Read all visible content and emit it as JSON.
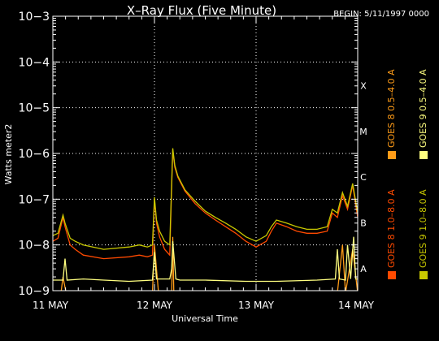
{
  "chart_data": {
    "type": "line",
    "title": "X–Ray Flux (Five Minute)",
    "begin_label": "BEGIN: 5/11/1997 0000",
    "xlabel": "Universal Time",
    "ylabel": "Watts meter2",
    "y_scale": "log",
    "ylim_exponents": [
      -9,
      -3
    ],
    "y_tick_labels": [
      "10−9",
      "10−8",
      "10−7",
      "10−6",
      "10−5",
      "10−4",
      "10−3"
    ],
    "x_range_days": [
      0,
      3
    ],
    "x_ticks": [
      {
        "day": 0,
        "label": "11 MAY"
      },
      {
        "day": 1,
        "label": "12 MAY"
      },
      {
        "day": 2,
        "label": "13 MAY"
      },
      {
        "day": 3,
        "label": "14 MAY"
      }
    ],
    "flare_classes": [
      {
        "label": "X",
        "exponent": -4
      },
      {
        "label": "M",
        "exponent": -5
      },
      {
        "label": "C",
        "exponent": -6
      },
      {
        "label": "B",
        "exponent": -7
      },
      {
        "label": "A",
        "exponent": -8
      }
    ],
    "grid": true,
    "legend_position": "right",
    "series": [
      {
        "name": "GOES 8  1.0–8.0 A",
        "color": "#ff4a00",
        "x": [
          0,
          0.05,
          0.1,
          0.12,
          0.17,
          0.22,
          0.3,
          0.5,
          0.75,
          0.85,
          0.93,
          0.98,
          1.0,
          1.02,
          1.05,
          1.1,
          1.15,
          1.18,
          1.2,
          1.23,
          1.3,
          1.4,
          1.5,
          1.6,
          1.7,
          1.8,
          1.9,
          2.0,
          2.1,
          2.15,
          2.2,
          2.3,
          2.4,
          2.5,
          2.6,
          2.7,
          2.75,
          2.8,
          2.85,
          2.9,
          2.95,
          3.0
        ],
        "y": [
          1.2e-08,
          1.4e-08,
          4e-08,
          2.5e-08,
          1e-08,
          8e-09,
          6e-09,
          5e-09,
          5.5e-09,
          6e-09,
          5.5e-09,
          6e-09,
          1e-07,
          3e-08,
          1.5e-08,
          8e-09,
          6e-09,
          1.2e-06,
          5e-07,
          3e-07,
          1.5e-07,
          8e-08,
          5e-08,
          3.5e-08,
          2.5e-08,
          1.8e-08,
          1.2e-08,
          9e-09,
          1.2e-08,
          2e-08,
          3e-08,
          2.5e-08,
          2e-08,
          1.8e-08,
          1.8e-08,
          2e-08,
          5e-08,
          4e-08,
          1.2e-07,
          6e-08,
          2e-07,
          4e-08
        ]
      },
      {
        "name": "GOES 8  0.5–4.0 A",
        "color": "#ff9c18",
        "x": [
          0,
          0.08,
          0.1,
          0.13,
          0.3,
          0.98,
          1.0,
          1.04,
          1.1,
          1.17,
          1.18,
          1.19,
          1.25,
          1.5,
          1.9,
          2.8,
          2.85,
          2.88,
          2.95,
          3.0
        ],
        "y": [
          1e-10,
          1e-10,
          2e-09,
          1e-10,
          1e-10,
          1e-10,
          1e-08,
          1e-10,
          1e-10,
          1e-10,
          1.5e-08,
          1e-10,
          1e-10,
          1e-10,
          1e-10,
          1e-10,
          1e-08,
          1e-10,
          8e-09,
          1e-10
        ]
      },
      {
        "name": "GOES 9  1.0–8.0 A",
        "color": "#c8c800",
        "x": [
          0,
          0.05,
          0.1,
          0.12,
          0.17,
          0.22,
          0.3,
          0.5,
          0.75,
          0.85,
          0.93,
          0.98,
          1.0,
          1.02,
          1.05,
          1.1,
          1.15,
          1.18,
          1.2,
          1.23,
          1.3,
          1.4,
          1.5,
          1.6,
          1.7,
          1.8,
          1.9,
          2.0,
          2.1,
          2.15,
          2.2,
          2.3,
          2.4,
          2.5,
          2.6,
          2.7,
          2.75,
          2.8,
          2.85,
          2.9,
          2.95,
          3.0
        ],
        "y": [
          1.6e-08,
          1.8e-08,
          4.5e-08,
          3e-08,
          1.4e-08,
          1.2e-08,
          1e-08,
          8e-09,
          9e-09,
          1e-08,
          9e-09,
          1e-08,
          1.1e-07,
          3.5e-08,
          2e-08,
          1.2e-08,
          1e-08,
          1.3e-06,
          5.5e-07,
          3.2e-07,
          1.6e-07,
          9e-08,
          5.5e-08,
          4e-08,
          3e-08,
          2.2e-08,
          1.5e-08,
          1.2e-08,
          1.6e-08,
          2.5e-08,
          3.5e-08,
          3e-08,
          2.5e-08,
          2.2e-08,
          2.2e-08,
          2.5e-08,
          6e-08,
          5e-08,
          1.4e-07,
          7e-08,
          2.2e-07,
          5e-08
        ]
      },
      {
        "name": "GOES 9  0.5–4.0 A",
        "color": "#ffff80",
        "x": [
          0,
          0.1,
          0.12,
          0.14,
          0.3,
          0.5,
          0.75,
          0.98,
          1.0,
          1.02,
          1.15,
          1.17,
          1.18,
          1.21,
          1.25,
          1.5,
          1.9,
          2.2,
          2.6,
          2.78,
          2.8,
          2.82,
          2.88,
          2.9,
          2.93,
          2.96,
          2.98,
          3.0
        ],
        "y": [
          1.7e-09,
          1.7e-09,
          5e-09,
          1.7e-09,
          1.8e-09,
          1.7e-09,
          1.6e-09,
          1.7e-09,
          7e-09,
          1.8e-09,
          1.8e-09,
          3e-09,
          1.2e-08,
          1.8e-09,
          1.7e-09,
          1.7e-09,
          1.6e-09,
          1.6e-09,
          1.7e-09,
          1.8e-09,
          8e-09,
          1.8e-09,
          1.7e-09,
          1e-08,
          1.8e-09,
          1.5e-08,
          1.8e-09,
          1.8e-09
        ]
      }
    ]
  }
}
